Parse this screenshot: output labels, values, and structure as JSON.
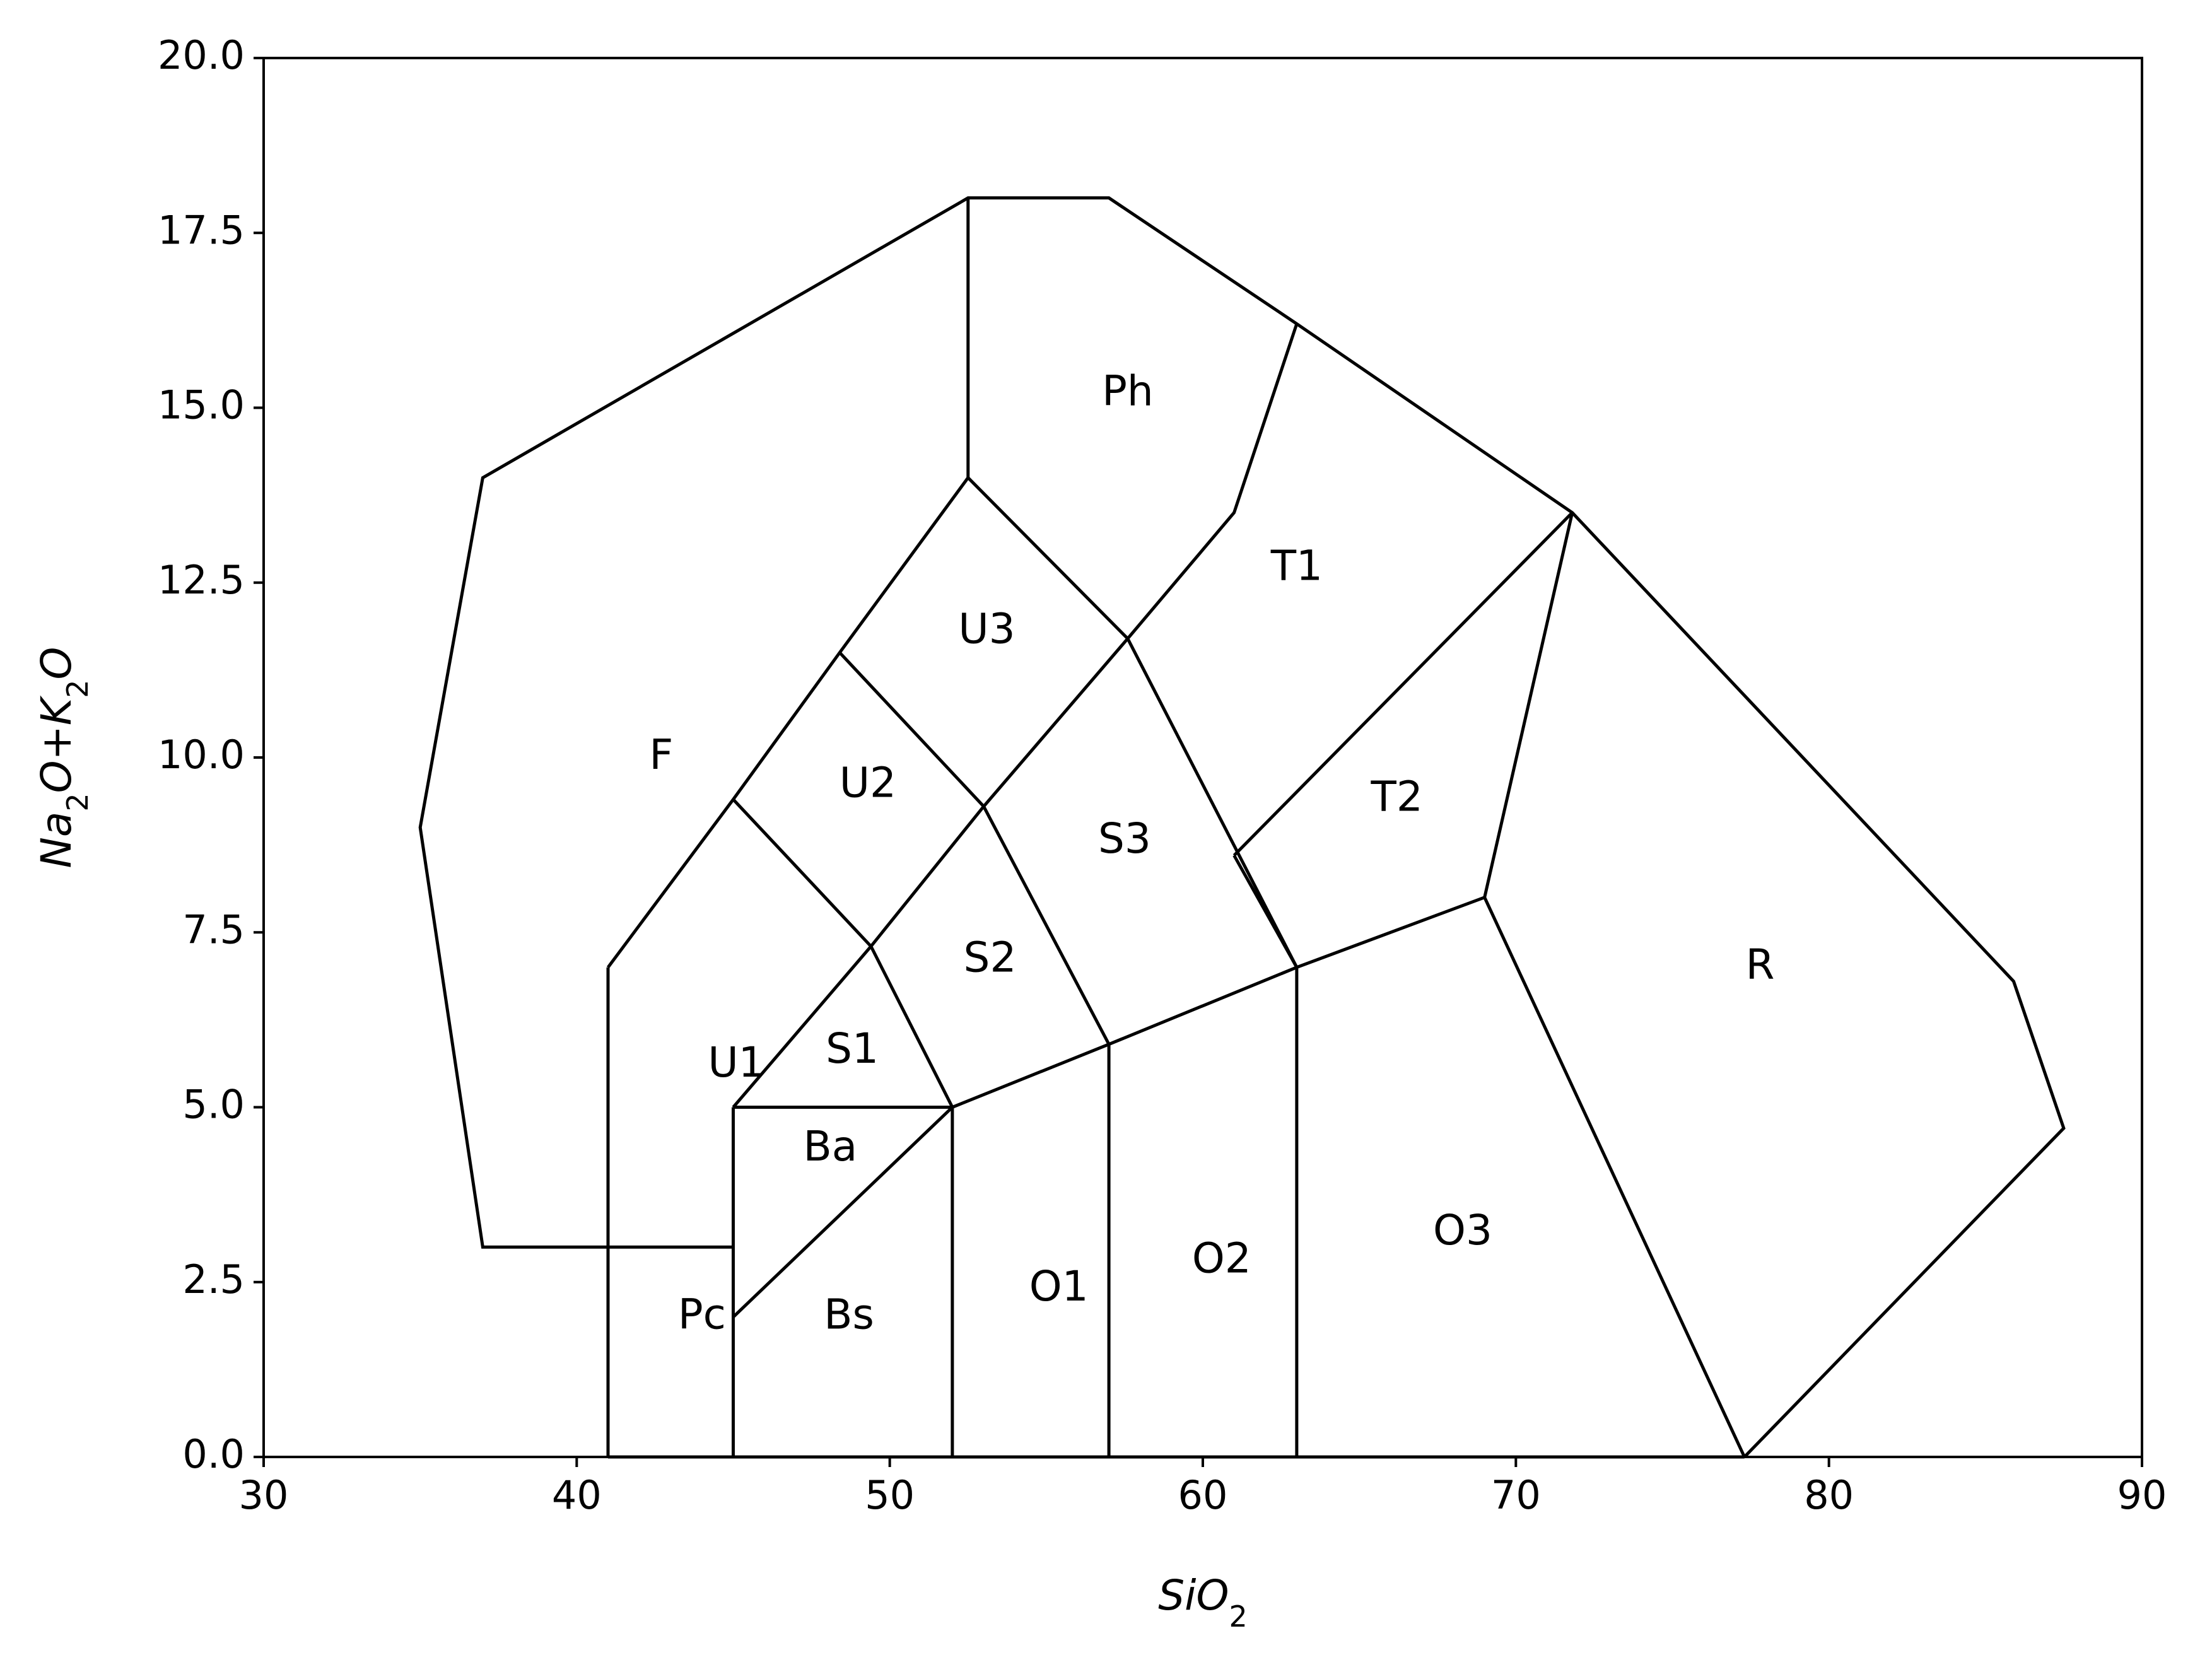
{
  "chart_data": {
    "type": "diagram",
    "xlabel": "SiO2",
    "ylabel": "Na2O+K2O",
    "xlim": [
      30,
      90
    ],
    "ylim": [
      0,
      20
    ],
    "xticks": [
      30,
      40,
      50,
      60,
      70,
      80,
      90
    ],
    "xtick_labels": [
      "30",
      "40",
      "50",
      "60",
      "70",
      "80",
      "90"
    ],
    "yticks": [
      0,
      2.5,
      5,
      7.5,
      10,
      12.5,
      15,
      17.5,
      20
    ],
    "ytick_labels": [
      "0.0",
      "2.5",
      "5.0",
      "7.5",
      "10.0",
      "12.5",
      "15.0",
      "17.5",
      "20.0"
    ],
    "grid": false,
    "line_color": "#000000",
    "boundaries": [
      {
        "id": "outer-upper",
        "points": [
          [
            45,
            3
          ],
          [
            37,
            3
          ],
          [
            35,
            9
          ],
          [
            37,
            14
          ],
          [
            52.5,
            18
          ],
          [
            57,
            18
          ],
          [
            63,
            16.2
          ],
          [
            71.8,
            13.5
          ],
          [
            85.9,
            6.8
          ],
          [
            87.5,
            4.7
          ],
          [
            77.3,
            0
          ]
        ]
      },
      {
        "id": "baseline",
        "points": [
          [
            41,
            0
          ],
          [
            77.3,
            0
          ]
        ]
      },
      {
        "id": "pc-left",
        "points": [
          [
            41,
            0
          ],
          [
            41,
            7
          ]
        ]
      },
      {
        "id": "pc-right",
        "points": [
          [
            45,
            0
          ],
          [
            45,
            5
          ]
        ]
      },
      {
        "id": "u1-u2-u3-left",
        "points": [
          [
            41,
            7
          ],
          [
            45,
            9.4
          ],
          [
            48.4,
            11.5
          ],
          [
            52.5,
            14
          ]
        ]
      },
      {
        "id": "ph-left",
        "points": [
          [
            52.5,
            14
          ],
          [
            52.5,
            18
          ]
        ]
      },
      {
        "id": "u1-u2",
        "points": [
          [
            45,
            9.4
          ],
          [
            49.4,
            7.3
          ],
          [
            52,
            5
          ]
        ]
      },
      {
        "id": "u2-s2",
        "points": [
          [
            48.4,
            11.5
          ],
          [
            53,
            9.3
          ],
          [
            57,
            5.9
          ]
        ]
      },
      {
        "id": "u3-s3",
        "points": [
          [
            52.5,
            14
          ],
          [
            57.6,
            11.7
          ],
          [
            63,
            7
          ]
        ]
      },
      {
        "id": "s-diagonal",
        "points": [
          [
            45,
            5
          ],
          [
            49.4,
            7.3
          ],
          [
            53,
            9.3
          ],
          [
            57.6,
            11.7
          ],
          [
            61,
            13.5
          ],
          [
            63,
            16.2
          ]
        ]
      },
      {
        "id": "ba-top",
        "points": [
          [
            45,
            5
          ],
          [
            52,
            5
          ]
        ]
      },
      {
        "id": "bs-diag",
        "points": [
          [
            45,
            2
          ],
          [
            52,
            5
          ]
        ]
      },
      {
        "id": "o1-left",
        "points": [
          [
            52,
            0
          ],
          [
            52,
            5
          ]
        ]
      },
      {
        "id": "o2-left",
        "points": [
          [
            57,
            0
          ],
          [
            57,
            5.9
          ]
        ]
      },
      {
        "id": "o3-left",
        "points": [
          [
            63,
            0
          ],
          [
            63,
            7
          ]
        ]
      },
      {
        "id": "dacite-line",
        "points": [
          [
            52,
            5
          ],
          [
            57,
            5.9
          ],
          [
            63,
            7
          ],
          [
            69,
            8
          ]
        ]
      },
      {
        "id": "t2-upper",
        "points": [
          [
            61,
            8.6
          ],
          [
            71.8,
            13.5
          ]
        ]
      },
      {
        "id": "t1-lower",
        "points": [
          [
            61,
            8.6
          ],
          [
            63,
            7
          ]
        ]
      },
      {
        "id": "r-left",
        "points": [
          [
            71.8,
            13.5
          ],
          [
            69,
            8
          ],
          [
            77.3,
            0
          ]
        ]
      }
    ],
    "regions": [
      {
        "label": "Ph",
        "x": 57.6,
        "y": 15.2
      },
      {
        "label": "T1",
        "x": 63,
        "y": 12.7
      },
      {
        "label": "U3",
        "x": 53.1,
        "y": 11.8
      },
      {
        "label": "F",
        "x": 42.7,
        "y": 10.0
      },
      {
        "label": "U2",
        "x": 49.3,
        "y": 9.6
      },
      {
        "label": "S3",
        "x": 57.5,
        "y": 8.8
      },
      {
        "label": "T2",
        "x": 66.2,
        "y": 9.4
      },
      {
        "label": "S2",
        "x": 53.2,
        "y": 7.1
      },
      {
        "label": "R",
        "x": 77.8,
        "y": 7.0
      },
      {
        "label": "S1",
        "x": 48.8,
        "y": 5.8
      },
      {
        "label": "U1",
        "x": 45.1,
        "y": 5.6
      },
      {
        "label": "Ba",
        "x": 48.1,
        "y": 4.4
      },
      {
        "label": "O3",
        "x": 68.3,
        "y": 3.2
      },
      {
        "label": "O2",
        "x": 60.6,
        "y": 2.8
      },
      {
        "label": "O1",
        "x": 55.4,
        "y": 2.4
      },
      {
        "label": "Pc",
        "x": 44.0,
        "y": 2.0
      },
      {
        "label": "Bs",
        "x": 48.7,
        "y": 2.0
      }
    ]
  }
}
